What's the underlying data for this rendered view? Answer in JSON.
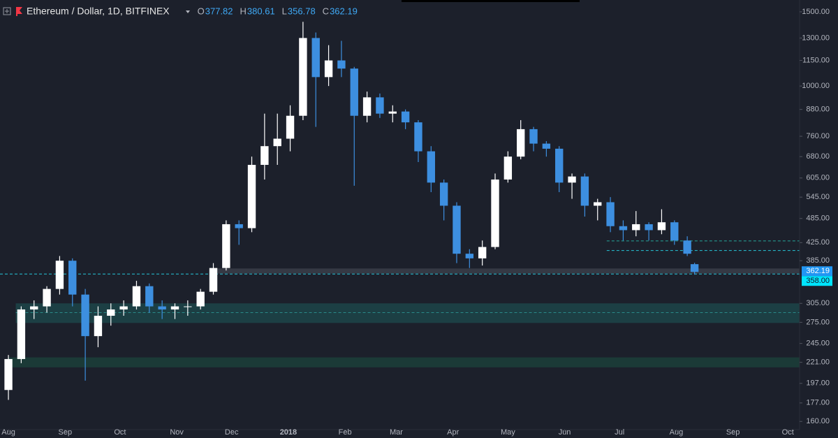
{
  "chart_data": {
    "type": "candlestick",
    "title": "Ethereum / Dollar, 1D, BITFINEX",
    "ohlc_header": [
      {
        "name": "O",
        "value": 377.82
      },
      {
        "name": "H",
        "value": 380.61
      },
      {
        "name": "L",
        "value": 356.78
      },
      {
        "name": "C",
        "value": 362.19
      }
    ],
    "x": [
      0,
      7,
      14,
      21,
      28,
      35,
      42,
      49,
      56,
      63,
      70,
      77,
      84,
      91,
      98,
      105,
      112,
      119,
      126,
      133,
      140,
      147,
      154,
      161,
      168,
      175,
      182,
      189,
      196,
      203,
      210,
      217,
      224,
      231,
      238,
      245,
      252,
      259,
      266,
      273,
      280,
      287,
      294,
      301,
      308,
      315,
      322,
      329,
      336,
      343,
      350,
      357,
      364,
      371,
      375
    ],
    "open": [
      190,
      225,
      295,
      300,
      330,
      385,
      320,
      255,
      285,
      295,
      300,
      335,
      300,
      295,
      300,
      300,
      325,
      370,
      470,
      460,
      650,
      720,
      750,
      850,
      1300,
      1050,
      1150,
      1100,
      850,
      940,
      860,
      870,
      820,
      700,
      590,
      520,
      400,
      390,
      415,
      600,
      680,
      790,
      730,
      710,
      590,
      610,
      520,
      530,
      465,
      455,
      470,
      455,
      475,
      430,
      377.82
    ],
    "high": [
      230,
      300,
      310,
      335,
      395,
      390,
      330,
      300,
      305,
      310,
      345,
      340,
      310,
      305,
      310,
      330,
      380,
      480,
      480,
      680,
      860,
      860,
      900,
      1420,
      1340,
      1250,
      1280,
      1110,
      970,
      960,
      900,
      880,
      830,
      720,
      600,
      530,
      410,
      430,
      620,
      700,
      830,
      800,
      740,
      720,
      620,
      620,
      540,
      545,
      480,
      505,
      475,
      510,
      480,
      440,
      380.61
    ],
    "low": [
      180,
      220,
      280,
      290,
      320,
      300,
      200,
      240,
      270,
      285,
      295,
      290,
      280,
      280,
      285,
      295,
      320,
      365,
      420,
      450,
      600,
      650,
      700,
      830,
      800,
      1000,
      1050,
      580,
      820,
      840,
      820,
      790,
      660,
      560,
      480,
      380,
      370,
      375,
      410,
      590,
      670,
      700,
      680,
      560,
      540,
      490,
      480,
      450,
      430,
      440,
      430,
      445,
      420,
      395,
      356.78
    ],
    "close": [
      225,
      295,
      300,
      330,
      385,
      320,
      255,
      285,
      295,
      300,
      335,
      300,
      295,
      300,
      300,
      325,
      370,
      470,
      460,
      650,
      720,
      750,
      850,
      1300,
      1050,
      1150,
      1100,
      850,
      940,
      860,
      870,
      820,
      700,
      590,
      520,
      400,
      390,
      415,
      600,
      680,
      790,
      730,
      710,
      590,
      610,
      520,
      530,
      465,
      455,
      470,
      455,
      475,
      430,
      400,
      362.19
    ],
    "up_color": "#ffffff",
    "down_color": "#3d8fe0",
    "log_scale": true,
    "xlim": [
      -4.6,
      432.4
    ],
    "ylim": [
      153,
      1600
    ],
    "xticks": [
      {
        "value": 0,
        "label": "Aug"
      },
      {
        "value": 31,
        "label": "Sep"
      },
      {
        "value": 61,
        "label": "Oct"
      },
      {
        "value": 92,
        "label": "Nov"
      },
      {
        "value": 122,
        "label": "Dec"
      },
      {
        "value": 153,
        "label": "2018"
      },
      {
        "value": 184,
        "label": "Feb"
      },
      {
        "value": 212,
        "label": "Mar"
      },
      {
        "value": 243,
        "label": "Apr"
      },
      {
        "value": 273,
        "label": "May"
      },
      {
        "value": 304,
        "label": "Jun"
      },
      {
        "value": 334,
        "label": "Jul"
      },
      {
        "value": 365,
        "label": "Aug"
      },
      {
        "value": 396,
        "label": "Sep"
      },
      {
        "value": 426,
        "label": "Oct"
      }
    ],
    "yticks": [
      {
        "value": 160,
        "label": "160.00"
      },
      {
        "value": 177,
        "label": "177.00"
      },
      {
        "value": 197,
        "label": "197.00"
      },
      {
        "value": 221,
        "label": "221.00"
      },
      {
        "value": 245,
        "label": "245.00"
      },
      {
        "value": 275,
        "label": "275.00"
      },
      {
        "value": 305,
        "label": "305.00"
      },
      {
        "value": 385,
        "label": "385.00"
      },
      {
        "value": 425,
        "label": "425.00"
      },
      {
        "value": 485,
        "label": "485.00"
      },
      {
        "value": 545,
        "label": "545.00"
      },
      {
        "value": 605,
        "label": "605.00"
      },
      {
        "value": 680,
        "label": "680.00"
      },
      {
        "value": 760,
        "label": "760.00"
      },
      {
        "value": 880,
        "label": "880.00"
      },
      {
        "value": 1000,
        "label": "1000.00"
      },
      {
        "value": 1150,
        "label": "1150.00"
      },
      {
        "value": 1300,
        "label": "1300.00"
      },
      {
        "value": 1500,
        "label": "1500.00"
      }
    ],
    "zones": [
      {
        "from": 359,
        "to": 369,
        "start": 110,
        "color": "#3a3e49"
      },
      {
        "from": 274,
        "to": 305,
        "start": 4,
        "color": "#1c4549"
      },
      {
        "from": 215,
        "to": 227,
        "start": 0,
        "color": "#1b3f39"
      }
    ],
    "lines": [
      {
        "value": 358,
        "label": "358.00",
        "start": -4.6,
        "color": "#26c6da"
      },
      {
        "value": 429,
        "start": 327,
        "color": "#26a69a"
      },
      {
        "value": 407,
        "start": 327,
        "color": "#26c6da"
      },
      {
        "value": 290,
        "start": 4,
        "color": "#2a8a8a"
      }
    ]
  }
}
